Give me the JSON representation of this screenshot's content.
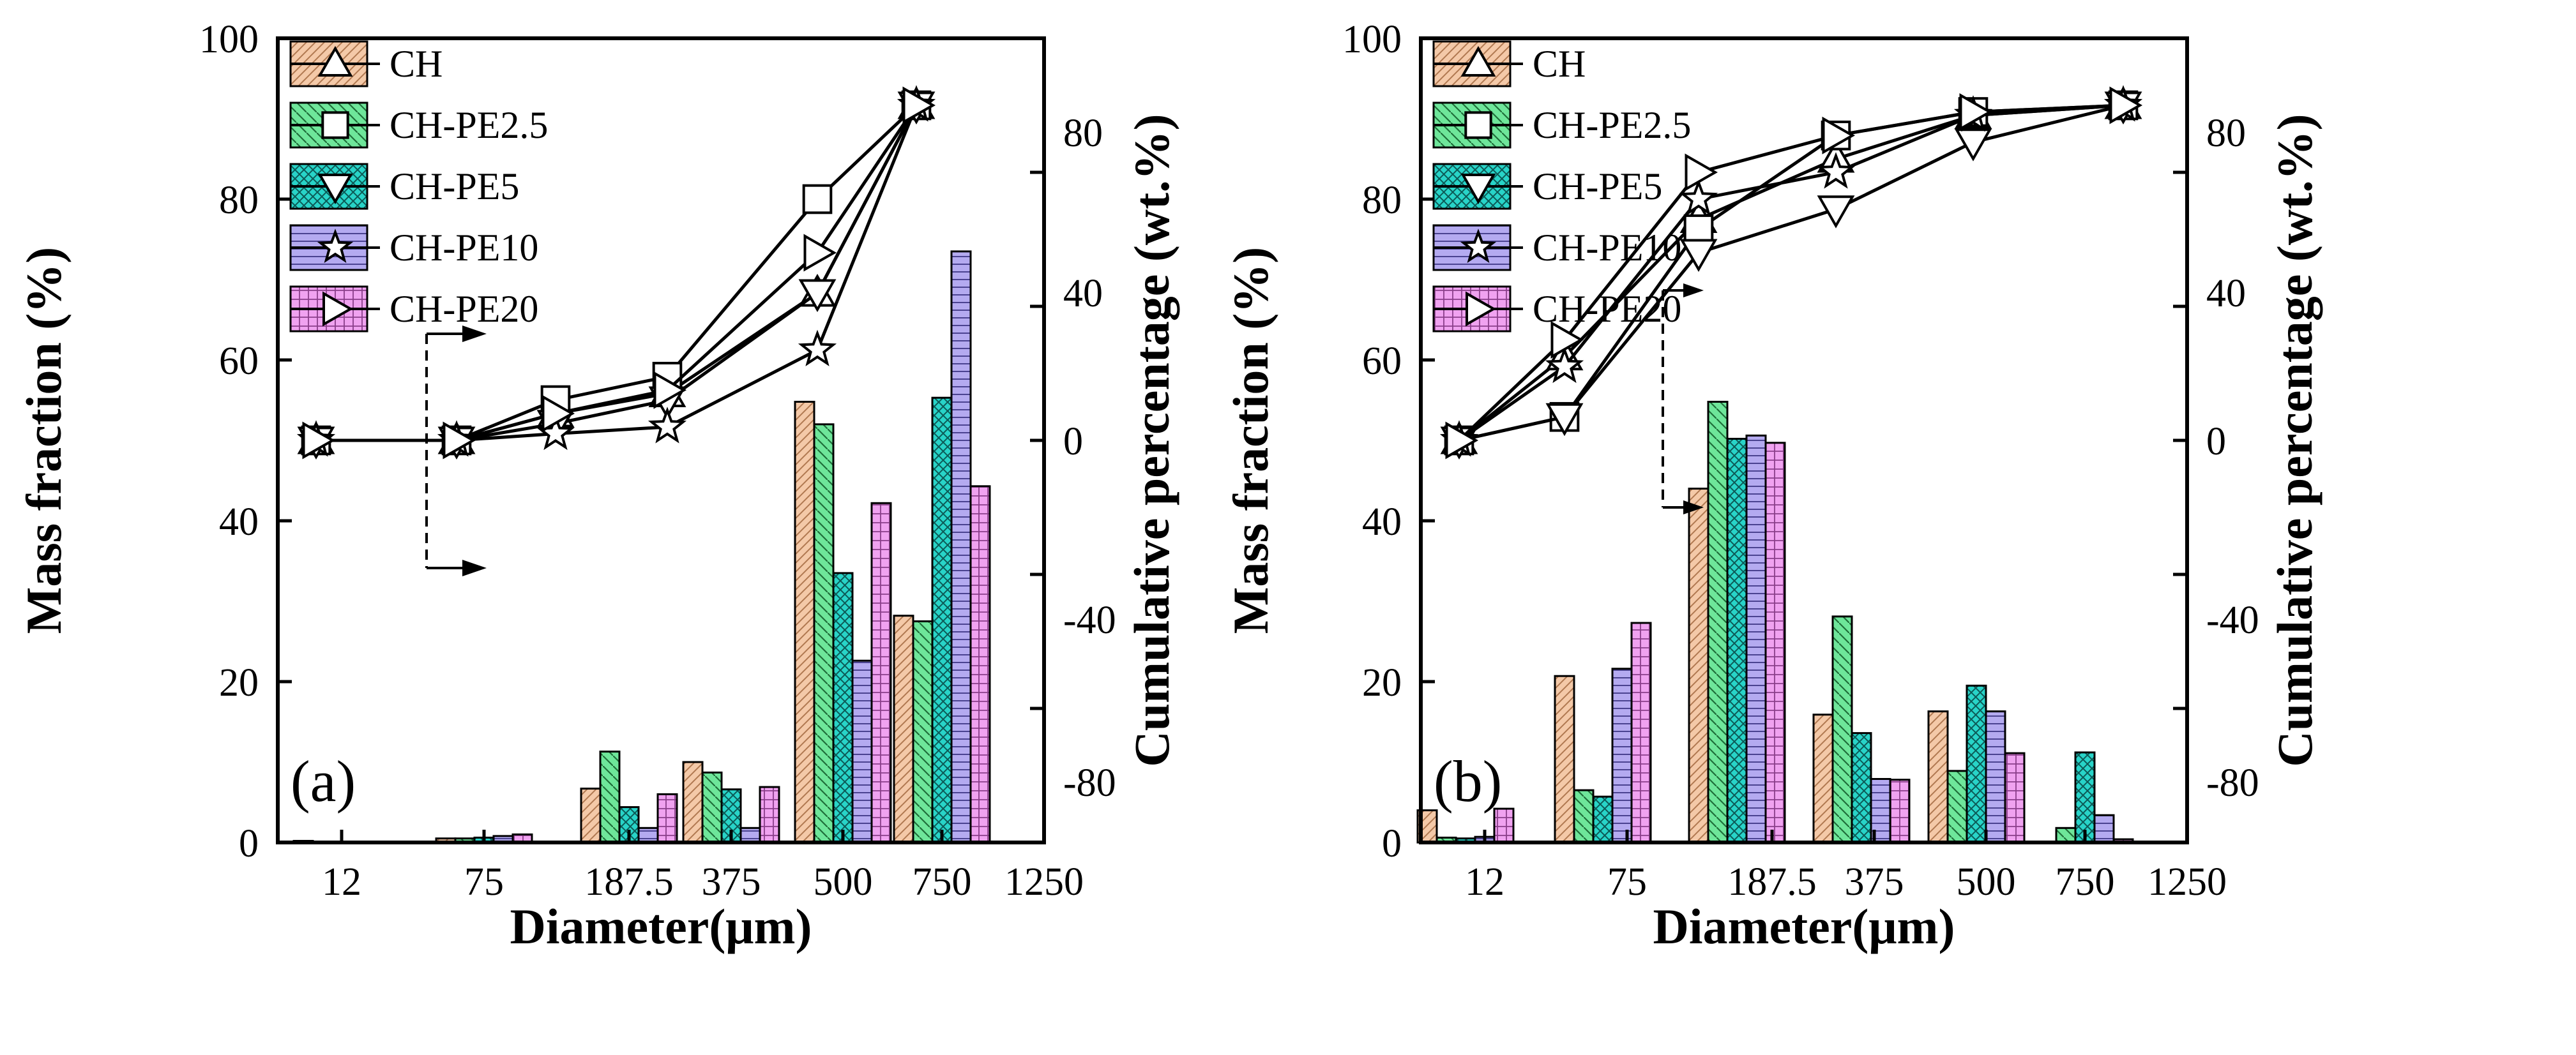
{
  "colors": {
    "CH": "#f4c9a8",
    "CH-PE2.5": "#6ee69a",
    "CH-PE5": "#28d4c8",
    "CH-PE10": "#b4aaf0",
    "CH-PE20": "#f0a2f0"
  },
  "chart_data": [
    {
      "type": "bar",
      "panel_label": "(a)",
      "xlabel": "Diameter(μm)",
      "ylabel": "Mass fraction (%)",
      "y2label": "Cumulative percentage (wt.%)",
      "ylim": [
        0,
        100
      ],
      "y2lim": [
        -120,
        120
      ],
      "yticks": [
        "0",
        "20",
        "40",
        "60",
        "80",
        "100"
      ],
      "y2ticks": [
        "-80",
        "-40",
        "0",
        "40",
        "80"
      ],
      "x_ticks": [
        "12",
        "75",
        "187.5",
        "375",
        "500",
        "750",
        "1250"
      ],
      "legend": [
        "CH",
        "CH-PE2.5",
        "CH-PE5",
        "CH-PE10",
        "CH-PE20"
      ],
      "legend_position": "top-left",
      "series": [
        {
          "name": "CH",
          "values": [
            0.2,
            0.5,
            6.7,
            10.0,
            54.8,
            28.2
          ]
        },
        {
          "name": "CH-PE2.5",
          "values": [
            0.0,
            0.5,
            11.3,
            8.7,
            52.0,
            27.5
          ]
        },
        {
          "name": "CH-PE5",
          "values": [
            0.0,
            0.6,
            4.4,
            6.6,
            33.5,
            55.3
          ]
        },
        {
          "name": "CH-PE10",
          "values": [
            0.0,
            0.8,
            1.8,
            1.8,
            22.6,
            73.5
          ]
        },
        {
          "name": "CH-PE20",
          "values": [
            0.0,
            1.0,
            6.0,
            6.9,
            42.2,
            44.3
          ]
        }
      ],
      "cumulative_series": [
        {
          "name": "CH",
          "values": [
            0,
            0,
            8,
            14,
            44,
            100
          ]
        },
        {
          "name": "CH-PE2.5",
          "values": [
            0,
            0,
            12,
            19,
            72,
            100
          ]
        },
        {
          "name": "CH-PE5",
          "values": [
            0,
            0,
            5,
            12,
            44,
            100
          ]
        },
        {
          "name": "CH-PE10",
          "values": [
            0,
            0,
            2,
            4,
            27,
            100
          ]
        },
        {
          "name": "CH-PE20",
          "values": [
            0,
            0,
            8,
            15,
            56,
            100
          ]
        }
      ]
    },
    {
      "type": "bar",
      "panel_label": "(b)",
      "xlabel": "Diameter(μm)",
      "ylabel": "Mass fraction (%)",
      "y2label": "Cumulative percentage (wt.%)",
      "ylim": [
        0,
        100
      ],
      "y2lim": [
        -120,
        120
      ],
      "yticks": [
        "0",
        "20",
        "40",
        "60",
        "80",
        "100"
      ],
      "y2ticks": [
        "-80",
        "-40",
        "0",
        "40",
        "80"
      ],
      "x_ticks": [
        "12",
        "75",
        "187.5",
        "375",
        "500",
        "750",
        "1250"
      ],
      "legend": [
        "CH",
        "CH-PE2.5",
        "CH-PE5",
        "CH-PE10",
        "CH-PE20"
      ],
      "legend_position": "top-left",
      "series": [
        {
          "name": "CH",
          "values": [
            4.0,
            20.7,
            44.0,
            15.9,
            16.3,
            0.0
          ]
        },
        {
          "name": "CH-PE2.5",
          "values": [
            0.6,
            6.5,
            54.8,
            28.1,
            8.9,
            1.8
          ]
        },
        {
          "name": "CH-PE5",
          "values": [
            0.5,
            5.7,
            50.2,
            13.6,
            19.5,
            11.2
          ]
        },
        {
          "name": "CH-PE10",
          "values": [
            0.7,
            21.6,
            50.6,
            7.9,
            16.3,
            3.4
          ]
        },
        {
          "name": "CH-PE20",
          "values": [
            4.2,
            27.3,
            49.7,
            7.8,
            11.1,
            0.4
          ]
        }
      ],
      "cumulative_series": [
        {
          "name": "CH",
          "values": [
            0,
            25,
            66,
            84,
            97,
            100
          ]
        },
        {
          "name": "CH-PE2.5",
          "values": [
            0,
            7,
            63,
            91,
            98,
            100
          ]
        },
        {
          "name": "CH-PE5",
          "values": [
            0,
            7,
            56,
            69,
            89,
            100
          ]
        },
        {
          "name": "CH-PE10",
          "values": [
            0,
            22,
            72,
            80,
            97,
            100
          ]
        },
        {
          "name": "CH-PE20",
          "values": [
            0,
            30,
            80,
            91,
            98,
            100
          ]
        }
      ]
    }
  ]
}
